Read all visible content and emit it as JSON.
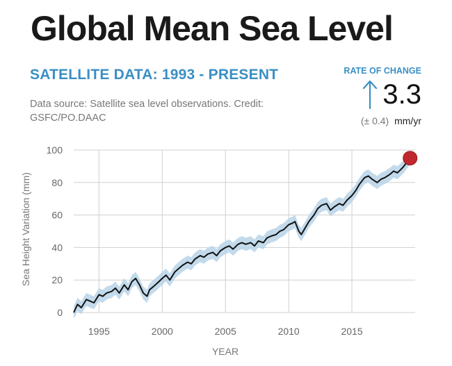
{
  "header": {
    "title": "Global Mean Sea Level",
    "subtitle": "SATELLITE DATA: 1993 - PRESENT",
    "source": "Data source: Satellite sea level observations. Credit: GSFC/PO.DAAC"
  },
  "rate": {
    "label": "RATE OF CHANGE",
    "value": "3.3",
    "uncertainty": "(± 0.4)",
    "unit": "mm/yr",
    "icon": "up-arrow-icon"
  },
  "colors": {
    "accent": "#3a8fc4",
    "line": "#111111",
    "band": "#b7d4e8",
    "marker": "#c0282d",
    "grid": "#cfcfcf"
  },
  "chart_data": {
    "type": "line",
    "title": "Global Mean Sea Level",
    "xlabel": "YEAR",
    "ylabel": "Sea Height Variation (mm)",
    "xlim": [
      1993,
      2020
    ],
    "ylim": [
      0,
      100
    ],
    "xticks": [
      1995,
      2000,
      2005,
      2010,
      2015
    ],
    "yticks": [
      0,
      20,
      40,
      60,
      80,
      100
    ],
    "grid": true,
    "uncertainty_band_mm": 4,
    "series": [
      {
        "name": "Sea Height Variation",
        "x": [
          1993.0,
          1993.3,
          1993.6,
          1994.0,
          1994.3,
          1994.6,
          1995.0,
          1995.3,
          1995.6,
          1996.0,
          1996.3,
          1996.6,
          1997.0,
          1997.3,
          1997.6,
          1997.9,
          1998.2,
          1998.5,
          1998.8,
          1999.0,
          1999.3,
          1999.6,
          2000.0,
          2000.3,
          2000.6,
          2001.0,
          2001.3,
          2001.6,
          2002.0,
          2002.3,
          2002.6,
          2003.0,
          2003.3,
          2003.6,
          2004.0,
          2004.3,
          2004.6,
          2005.0,
          2005.3,
          2005.6,
          2006.0,
          2006.3,
          2006.6,
          2007.0,
          2007.3,
          2007.6,
          2008.0,
          2008.3,
          2008.6,
          2009.0,
          2009.3,
          2009.6,
          2010.0,
          2010.3,
          2010.5,
          2010.8,
          2011.0,
          2011.3,
          2011.6,
          2012.0,
          2012.3,
          2012.6,
          2013.0,
          2013.3,
          2013.6,
          2014.0,
          2014.3,
          2014.6,
          2015.0,
          2015.3,
          2015.6,
          2016.0,
          2016.3,
          2016.6,
          2017.0,
          2017.3,
          2017.6,
          2018.0,
          2018.3,
          2018.6,
          2019.0,
          2019.3,
          2019.6
        ],
        "y": [
          0,
          5,
          3,
          8,
          7,
          6,
          11,
          10,
          12,
          13,
          15,
          12,
          17,
          14,
          19,
          21,
          17,
          12,
          10,
          14,
          16,
          18,
          21,
          23,
          20,
          25,
          27,
          29,
          31,
          30,
          33,
          35,
          34,
          36,
          37,
          35,
          38,
          40,
          41,
          39,
          42,
          43,
          42,
          43,
          41,
          44,
          43,
          46,
          47,
          48,
          50,
          51,
          54,
          55,
          56,
          50,
          48,
          52,
          56,
          60,
          64,
          66,
          67,
          63,
          65,
          67,
          66,
          69,
          72,
          75,
          79,
          83,
          84,
          82,
          80,
          82,
          83,
          85,
          87,
          86,
          89,
          92,
          95
        ]
      }
    ],
    "current_marker": {
      "x": 2019.6,
      "y": 95
    }
  }
}
